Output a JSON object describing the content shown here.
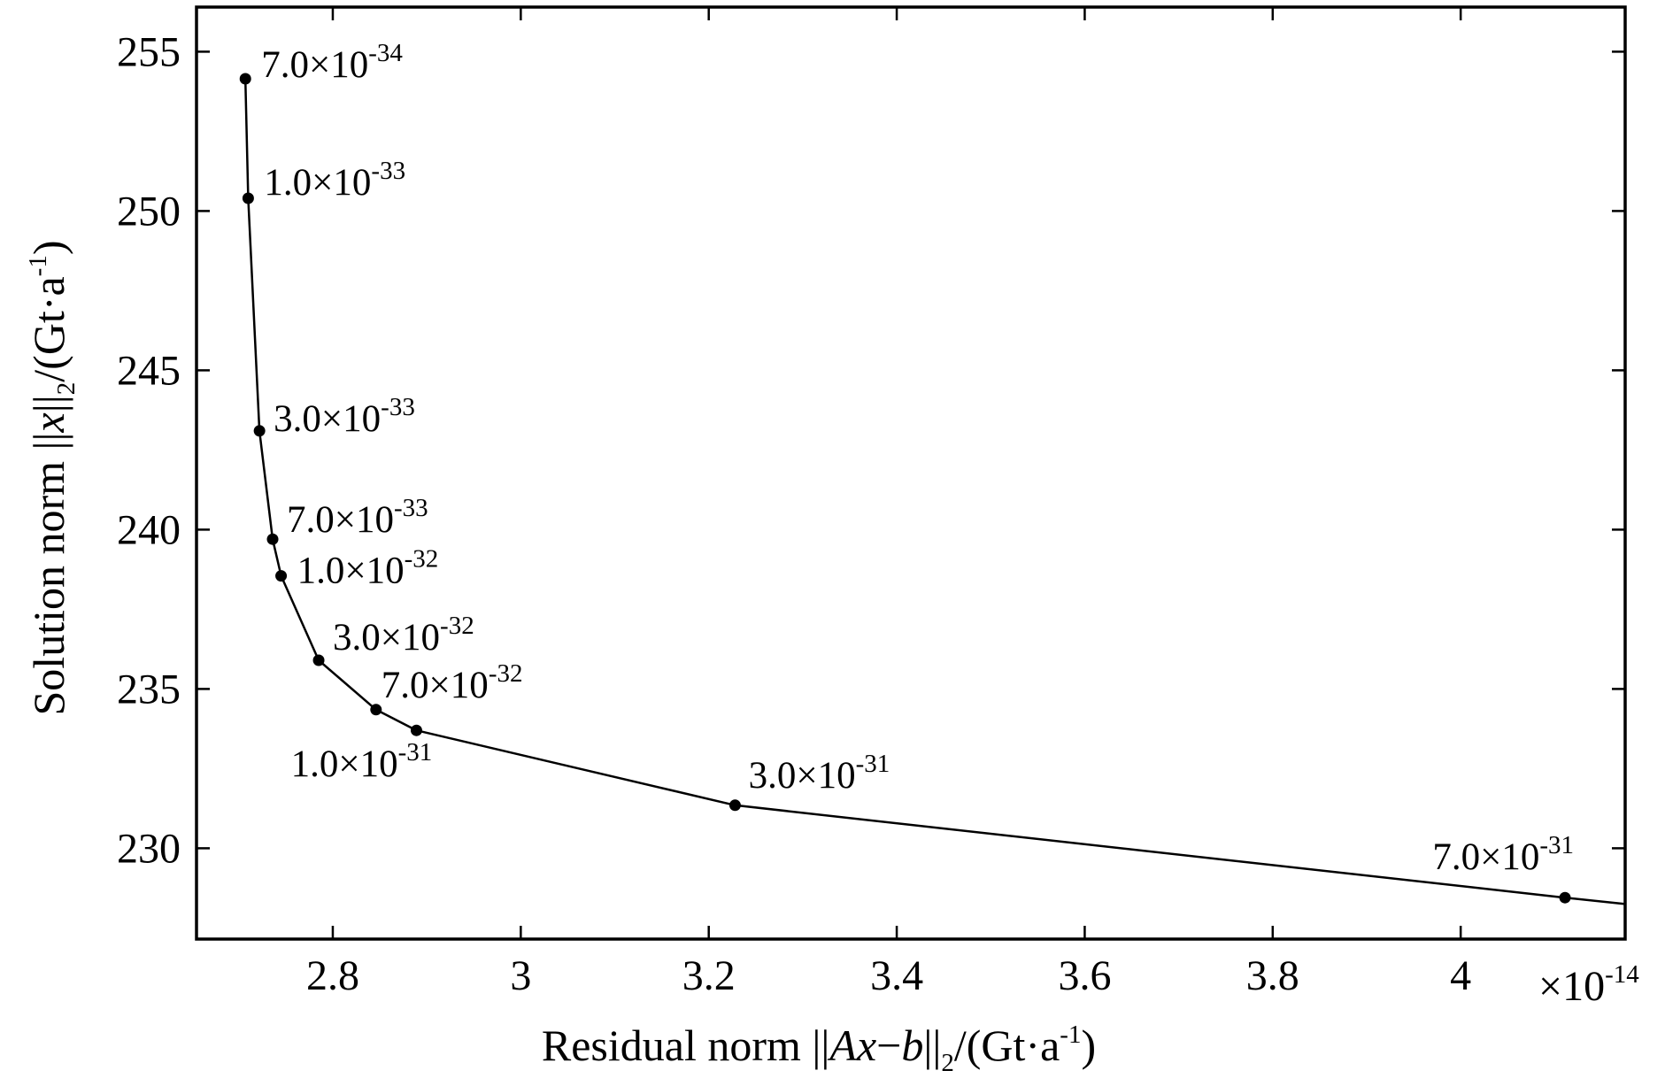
{
  "chart_data": {
    "type": "line",
    "title": "",
    "xlabel": {
      "prefix": "Residual norm ||",
      "italic_a": "Ax",
      "dash": "−",
      "italic_b": "b",
      "bars": "||",
      "sub": "2",
      "unit": "/(Gt·a",
      "unit_sup": "-1",
      "close": ")"
    },
    "ylabel": {
      "prefix": "Solution norm ||",
      "italic": "x",
      "bars": "||",
      "sub": "2",
      "unit": "/(Gt·a",
      "unit_sup": "-1",
      "close": ")"
    },
    "x_multiplier": {
      "base": "×10",
      "exp": "-14"
    },
    "xlim": [
      2.655,
      4.175
    ],
    "ylim": [
      227.15,
      256.4
    ],
    "xticks": [
      {
        "value": 2.8,
        "label": "2.8"
      },
      {
        "value": 3.0,
        "label": "3"
      },
      {
        "value": 3.2,
        "label": "3.2"
      },
      {
        "value": 3.4,
        "label": "3.4"
      },
      {
        "value": 3.6,
        "label": "3.6"
      },
      {
        "value": 3.8,
        "label": "3.8"
      },
      {
        "value": 4.0,
        "label": "4"
      }
    ],
    "yticks": [
      {
        "value": 230,
        "label": "230"
      },
      {
        "value": 235,
        "label": "235"
      },
      {
        "value": 240,
        "label": "240"
      },
      {
        "value": 245,
        "label": "245"
      },
      {
        "value": 250,
        "label": "250"
      },
      {
        "value": 255,
        "label": "255"
      }
    ],
    "grid": false,
    "series": [
      {
        "x": [
          2.707,
          2.71,
          2.722,
          2.736,
          2.745,
          2.785,
          2.846,
          2.889,
          3.228,
          4.111,
          4.175
        ],
        "y": [
          254.15,
          250.4,
          243.1,
          239.7,
          238.55,
          235.9,
          234.35,
          233.7,
          231.35,
          228.45,
          228.25
        ],
        "markers": [
          true,
          true,
          true,
          true,
          true,
          true,
          true,
          true,
          true,
          true,
          false
        ]
      }
    ],
    "annotations": [
      {
        "mantissa": "7.0×10",
        "exp": "-34"
      },
      {
        "mantissa": "1.0×10",
        "exp": "-33"
      },
      {
        "mantissa": "3.0×10",
        "exp": "-33"
      },
      {
        "mantissa": "7.0×10",
        "exp": "-33"
      },
      {
        "mantissa": "1.0×10",
        "exp": "-32"
      },
      {
        "mantissa": "3.0×10",
        "exp": "-32"
      },
      {
        "mantissa": "7.0×10",
        "exp": "-32"
      },
      {
        "mantissa": "1.0×10",
        "exp": "-31"
      },
      {
        "mantissa": "3.0×10",
        "exp": "-31"
      },
      {
        "mantissa": "7.0×10",
        "exp": "-31"
      }
    ]
  }
}
